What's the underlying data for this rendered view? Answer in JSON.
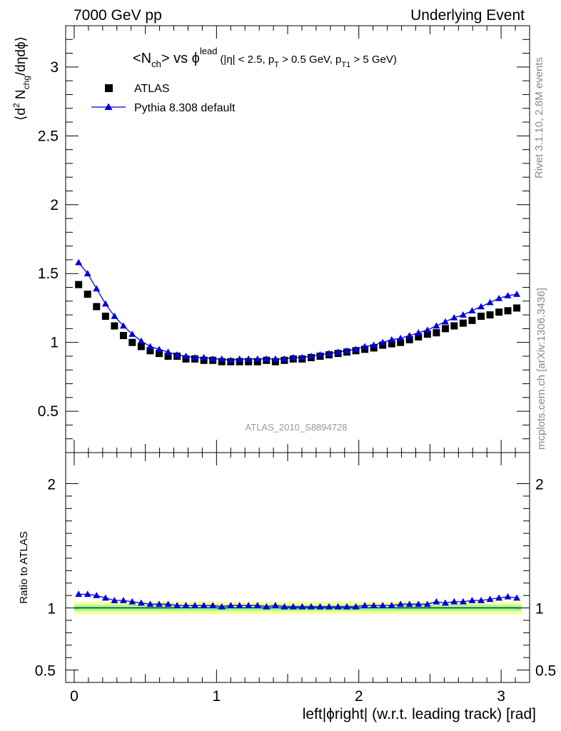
{
  "header": {
    "left": "7000 GeV pp",
    "right": "Underlying Event"
  },
  "side_text": {
    "rivet": "Rivet 3.1.10,  2.8M events",
    "mcplots": "mcplots.cern.ch [arXiv:1306.3436]"
  },
  "watermark": "ATLAS_2010_S8894728",
  "colors": {
    "data": "#000000",
    "mc": "#0000dd",
    "band_inner": "#99ff99",
    "band_outer": "#ffff99",
    "ref_line": "#006600"
  },
  "chart_data": [
    {
      "type": "scatter",
      "panel": "main",
      "title_parts": {
        "lhs": "<N",
        "lhs_sub": "ch",
        "mid": "> vs ",
        "phi": "ϕ",
        "phi_sup": "lead",
        "cut1": "(|η| < 2.5, p",
        "cut1_sub": "T",
        "cut2": " > 0.5 GeV, p",
        "cut2_sub": "T1",
        "cut3": " > 5 GeV)"
      },
      "ylabel_parts": {
        "a": "⟨d",
        "a_sup": "2",
        "b": " N",
        "b_sub": "chg",
        "c": "/dηdϕ⟩"
      },
      "xlim": [
        -0.06,
        3.2
      ],
      "ylim": [
        0.2,
        3.3
      ],
      "yticks": [
        0.5,
        1,
        1.5,
        2,
        2.5,
        3
      ],
      "ytick_labels": [
        "0.5",
        "1",
        "1.5",
        "2",
        "2.5",
        "3"
      ],
      "legend_position": "top-left",
      "series": [
        {
          "name": "ATLAS",
          "marker": "square",
          "x": [
            0.031,
            0.094,
            0.157,
            0.22,
            0.283,
            0.346,
            0.408,
            0.471,
            0.534,
            0.597,
            0.66,
            0.723,
            0.785,
            0.848,
            0.911,
            0.974,
            1.037,
            1.1,
            1.162,
            1.225,
            1.288,
            1.351,
            1.414,
            1.477,
            1.539,
            1.602,
            1.665,
            1.728,
            1.791,
            1.854,
            1.916,
            1.979,
            2.042,
            2.105,
            2.168,
            2.231,
            2.293,
            2.356,
            2.419,
            2.482,
            2.545,
            2.608,
            2.67,
            2.733,
            2.796,
            2.859,
            2.922,
            2.985,
            3.047,
            3.11
          ],
          "y": [
            1.42,
            1.35,
            1.26,
            1.19,
            1.12,
            1.05,
            1.0,
            0.97,
            0.94,
            0.92,
            0.9,
            0.9,
            0.88,
            0.88,
            0.87,
            0.87,
            0.86,
            0.86,
            0.86,
            0.86,
            0.86,
            0.87,
            0.86,
            0.87,
            0.88,
            0.88,
            0.89,
            0.9,
            0.91,
            0.92,
            0.93,
            0.94,
            0.95,
            0.96,
            0.98,
            0.99,
            1.0,
            1.02,
            1.04,
            1.06,
            1.07,
            1.1,
            1.12,
            1.14,
            1.16,
            1.19,
            1.2,
            1.22,
            1.23,
            1.25
          ]
        },
        {
          "name": "Pythia 8.308 default",
          "marker": "triangle",
          "x": [
            0.031,
            0.094,
            0.157,
            0.22,
            0.283,
            0.346,
            0.408,
            0.471,
            0.534,
            0.597,
            0.66,
            0.723,
            0.785,
            0.848,
            0.911,
            0.974,
            1.037,
            1.1,
            1.162,
            1.225,
            1.288,
            1.351,
            1.414,
            1.477,
            1.539,
            1.602,
            1.665,
            1.728,
            1.791,
            1.854,
            1.916,
            1.979,
            2.042,
            2.105,
            2.168,
            2.231,
            2.293,
            2.356,
            2.419,
            2.482,
            2.545,
            2.608,
            2.67,
            2.733,
            2.796,
            2.859,
            2.922,
            2.985,
            3.047,
            3.11
          ],
          "y": [
            1.58,
            1.5,
            1.39,
            1.28,
            1.19,
            1.12,
            1.06,
            1.01,
            0.97,
            0.95,
            0.93,
            0.91,
            0.9,
            0.89,
            0.89,
            0.88,
            0.88,
            0.87,
            0.88,
            0.88,
            0.88,
            0.88,
            0.88,
            0.88,
            0.89,
            0.89,
            0.9,
            0.91,
            0.92,
            0.93,
            0.94,
            0.95,
            0.97,
            0.98,
            1.0,
            1.02,
            1.03,
            1.05,
            1.07,
            1.09,
            1.12,
            1.15,
            1.18,
            1.2,
            1.23,
            1.26,
            1.29,
            1.32,
            1.34,
            1.35
          ]
        }
      ]
    },
    {
      "type": "scatter",
      "panel": "ratio",
      "ylabel": "Ratio to ATLAS",
      "xlabel": "left|ϕright| (w.r.t. leading track) [rad]",
      "xlim": [
        -0.06,
        3.2
      ],
      "xticks": [
        0,
        1,
        2,
        3
      ],
      "xtick_labels": [
        "0",
        "1",
        "2",
        "3"
      ],
      "ylim": [
        0.4,
        2.25
      ],
      "yticks": [
        0.5,
        1,
        2
      ],
      "ytick_labels": [
        "0.5",
        "1",
        "2"
      ],
      "band_inner": [
        0.975,
        1.025
      ],
      "band_outer": [
        0.95,
        1.05
      ],
      "series": [
        {
          "name": "Pythia 8.308 default",
          "marker": "triangle",
          "x": [
            0.031,
            0.094,
            0.157,
            0.22,
            0.283,
            0.346,
            0.408,
            0.471,
            0.534,
            0.597,
            0.66,
            0.723,
            0.785,
            0.848,
            0.911,
            0.974,
            1.037,
            1.1,
            1.162,
            1.225,
            1.288,
            1.351,
            1.414,
            1.477,
            1.539,
            1.602,
            1.665,
            1.728,
            1.791,
            1.854,
            1.916,
            1.979,
            2.042,
            2.105,
            2.168,
            2.231,
            2.293,
            2.356,
            2.419,
            2.482,
            2.545,
            2.608,
            2.67,
            2.733,
            2.796,
            2.859,
            2.922,
            2.985,
            3.047,
            3.11
          ],
          "y": [
            1.11,
            1.11,
            1.1,
            1.08,
            1.06,
            1.06,
            1.05,
            1.04,
            1.03,
            1.03,
            1.03,
            1.02,
            1.02,
            1.02,
            1.02,
            1.02,
            1.01,
            1.02,
            1.02,
            1.02,
            1.02,
            1.01,
            1.02,
            1.01,
            1.01,
            1.01,
            1.01,
            1.01,
            1.01,
            1.01,
            1.01,
            1.01,
            1.02,
            1.02,
            1.02,
            1.02,
            1.03,
            1.03,
            1.03,
            1.03,
            1.05,
            1.04,
            1.05,
            1.05,
            1.06,
            1.06,
            1.07,
            1.08,
            1.09,
            1.08
          ]
        }
      ]
    }
  ]
}
